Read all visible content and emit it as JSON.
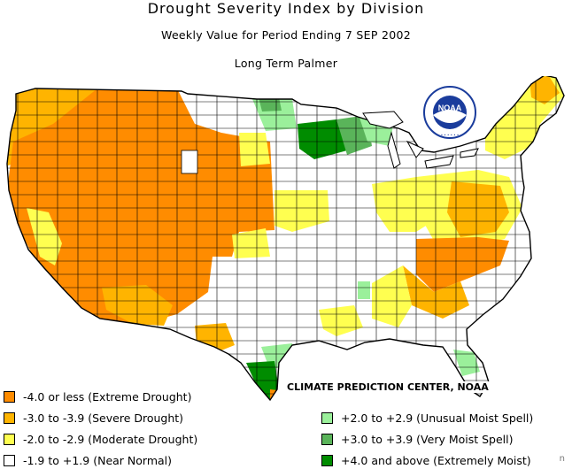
{
  "title": "Drought Severity Index by Division",
  "subtitle": "Weekly Value for Period Ending  7 SEP 2002",
  "index_name": "Long Term Palmer",
  "credit": "CLIMATE PREDICTION CENTER, NOAA",
  "logo_text": "NOAA",
  "corner_mark": "n",
  "colors": {
    "extreme_drought": "#ff8c00",
    "severe_drought": "#ffb400",
    "moderate_drought": "#ffff50",
    "near_normal": "#ffffff",
    "unusual_moist": "#9bf09b",
    "very_moist": "#5ab45a",
    "extremely_moist": "#008c00",
    "border": "#000000",
    "logo_blue": "#1a3c9c"
  },
  "legend": [
    {
      "label": "-4.0 or less (Extreme Drought)",
      "color": "#ff8c00"
    },
    {
      "label": "-3.0 to -3.9 (Severe Drought)",
      "color": "#ffb400"
    },
    {
      "label": "-2.0 to -2.9 (Moderate Drought)",
      "color": "#ffff50"
    },
    {
      "label": "-1.9 to +1.9 (Near Normal)",
      "color": "#ffffff"
    },
    {
      "label": "+2.0 to +2.9 (Unusual Moist Spell)",
      "color": "#9bf09b"
    },
    {
      "label": "+3.0 to +3.9 (Very Moist Spell)",
      "color": "#5ab45a"
    },
    {
      "label": "+4.0 and above (Extremely Moist)",
      "color": "#008c00"
    }
  ]
}
